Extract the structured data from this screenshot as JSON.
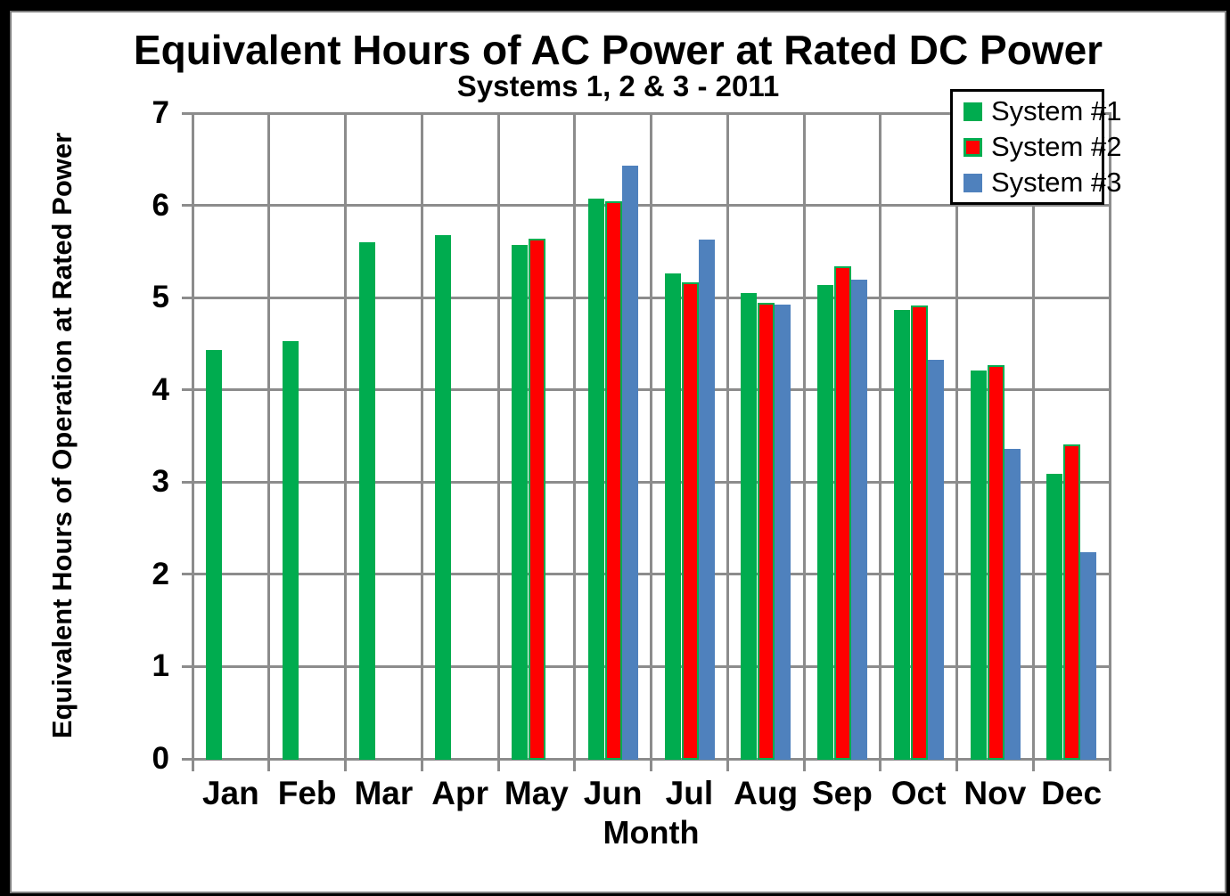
{
  "chart_data": {
    "type": "bar",
    "title": "Equivalent Hours of AC Power at Rated DC Power",
    "subtitle": "Systems 1, 2 & 3 - 2011",
    "xlabel": "Month",
    "ylabel": "Equivalent Hours of Operation at Rated Power",
    "categories": [
      "Jan",
      "Feb",
      "Mar",
      "Apr",
      "May",
      "Jun",
      "Jul",
      "Aug",
      "Sep",
      "Oct",
      "Nov",
      "Dec"
    ],
    "series": [
      {
        "name": "System #1",
        "color": "#00AC4F",
        "values": [
          4.43,
          4.53,
          5.6,
          5.68,
          5.57,
          6.07,
          5.26,
          5.05,
          5.14,
          4.87,
          4.21,
          3.09
        ]
      },
      {
        "name": "System #2",
        "color": "#FF0000",
        "border_color": "#00AC4F",
        "values": [
          null,
          null,
          null,
          null,
          5.64,
          6.04,
          5.17,
          4.94,
          5.34,
          4.91,
          4.27,
          3.41
        ]
      },
      {
        "name": "System #3",
        "color": "#4F81BD",
        "values": [
          null,
          null,
          null,
          null,
          null,
          6.43,
          5.63,
          4.92,
          5.19,
          4.33,
          3.36,
          2.24
        ]
      }
    ],
    "ylim": [
      0,
      7
    ],
    "yticks": [
      0,
      1,
      2,
      3,
      4,
      5,
      6,
      7
    ],
    "grid": true,
    "gridline_color": "#8C8C8C",
    "axis_color": "#8C8C8C",
    "text_color": "#000000",
    "background": "#FFFFFF",
    "legend": {
      "position": "top-right",
      "border_color": "#000000",
      "background": "#FFFFFF"
    }
  }
}
